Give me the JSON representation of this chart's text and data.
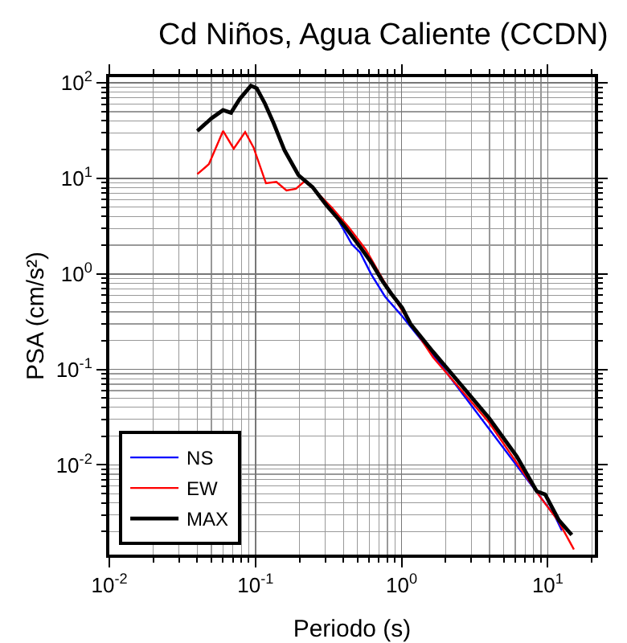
{
  "chart_data": {
    "type": "line",
    "title": "Cd Niños, Agua Caliente (CCDN)",
    "xlabel": "Periodo (s)",
    "ylabel": "PSA (cm/s²)",
    "log": "xy",
    "grid": true,
    "legend": "bottom left",
    "line_style": "solid",
    "marker": "none",
    "xlim": [
      0.01,
      21
    ],
    "ylim": [
      0.00115,
      115
    ],
    "xticks": [
      {
        "value": 0.01,
        "label": "10$^{-2}$"
      },
      {
        "value": 0.1,
        "label": "10$^{-1}$"
      },
      {
        "value": 1,
        "label": "10$^{0}$"
      },
      {
        "value": 10,
        "label": "10$^{1}$"
      }
    ],
    "yticks": [
      {
        "value": 0.01,
        "label": "10$^{-2}$"
      },
      {
        "value": 0.1,
        "label": "10$^{-1}$"
      },
      {
        "value": 1,
        "label": "10$^{0}$"
      },
      {
        "value": 10,
        "label": "10$^{1}$"
      },
      {
        "value": 100,
        "label": "10$^{2}$"
      }
    ],
    "series": [
      {
        "name": "NS",
        "color": "#0000ff",
        "x": [
          0.366,
          0.456,
          0.52,
          0.62,
          0.77,
          1.01,
          1.64,
          11.2,
          12.5
        ],
        "values": [
          3.73,
          2.05,
          1.68,
          0.99,
          0.58,
          0.36,
          0.143,
          0.0029,
          0.00205
        ]
      },
      {
        "name": "EW",
        "color": "#ff0000",
        "x": [
          0.04,
          0.048,
          0.06,
          0.071,
          0.085,
          0.097,
          0.118,
          0.139,
          0.163,
          0.189,
          0.22,
          0.335,
          0.436,
          0.57,
          0.74,
          1.01,
          1.64,
          3.96,
          8.8,
          11.9,
          15.1
        ],
        "values": [
          11.1,
          14.1,
          31.4,
          20.5,
          30.6,
          21.1,
          8.9,
          9.2,
          7.5,
          7.8,
          9.5,
          4.9,
          3.06,
          1.79,
          0.89,
          0.41,
          0.134,
          0.0279,
          0.0047,
          0.00254,
          0.0013
        ]
      },
      {
        "name": "MAX",
        "color": "#000000",
        "x": [
          0.04,
          0.05,
          0.06,
          0.068,
          0.078,
          0.093,
          0.102,
          0.116,
          0.133,
          0.158,
          0.197,
          0.246,
          0.307,
          0.4,
          0.52,
          0.62,
          0.74,
          0.85,
          1.01,
          1.15,
          1.64,
          2.55,
          3.96,
          6.15,
          8.4,
          9.6,
          11.9,
          14.6
        ],
        "values": [
          31.4,
          42.6,
          52,
          48.7,
          68,
          93.6,
          88,
          61,
          38,
          19.7,
          10.8,
          8.1,
          5.2,
          3.27,
          1.92,
          1.32,
          0.84,
          0.62,
          0.44,
          0.3,
          0.153,
          0.069,
          0.031,
          0.0122,
          0.0053,
          0.0049,
          0.00264,
          0.00185
        ]
      }
    ]
  }
}
